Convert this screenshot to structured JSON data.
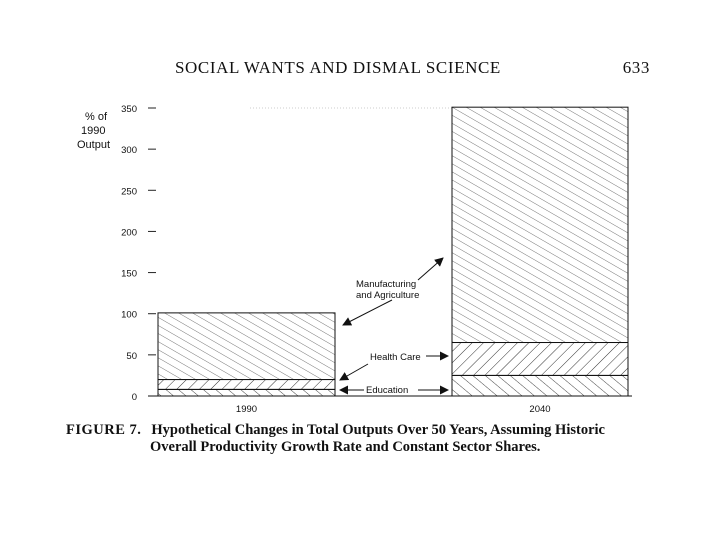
{
  "running_head": {
    "title": "SOCIAL WANTS AND DISMAL SCIENCE",
    "page_number": "633"
  },
  "figure": {
    "label": "FIGURE 7.",
    "caption_line1": "Hypothetical Changes in Total Outputs Over 50 Years, Assuming Historic",
    "caption_line2": "Overall Productivity Growth Rate and Constant Sector Shares."
  },
  "chart_data": {
    "type": "bar",
    "stacked": true,
    "ylabel": "% of 1990 Output",
    "ylabel_lines": [
      "% of",
      "1990",
      "Output"
    ],
    "ylim": [
      0,
      350
    ],
    "yticks": [
      0,
      50,
      100,
      150,
      200,
      250,
      300,
      350
    ],
    "ytick_labels": [
      "0",
      "50",
      "100",
      "150",
      "200",
      "250",
      "300",
      "350"
    ],
    "categories": [
      "1990",
      "2040"
    ],
    "series": [
      {
        "name": "Education",
        "values": [
          8,
          25
        ]
      },
      {
        "name": "Health Care",
        "values": [
          12,
          40
        ]
      },
      {
        "name": "Manufacturing and Agriculture",
        "values": [
          81,
          286
        ]
      }
    ],
    "annotations": [
      {
        "text_lines": [
          "Manufacturing",
          "and Agriculture"
        ],
        "series": "Manufacturing and Agriculture"
      },
      {
        "text_lines": [
          "Health Care"
        ],
        "series": "Health Care"
      },
      {
        "text_lines": [
          "Education"
        ],
        "series": "Education"
      }
    ]
  }
}
